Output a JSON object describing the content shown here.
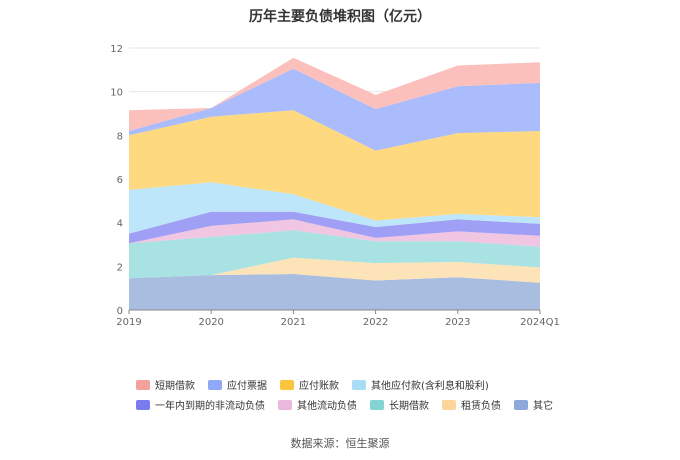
{
  "chart_data": {
    "type": "area",
    "stacked": true,
    "title": "历年主要负债堆积图（亿元）",
    "source": "数据来源：恒生聚源",
    "xlabel": "",
    "ylabel": "",
    "categories": [
      "2019",
      "2020",
      "2021",
      "2022",
      "2023",
      "2024Q1"
    ],
    "yticks": [
      0,
      2,
      4,
      6,
      8,
      10,
      12
    ],
    "ylim": [
      0,
      12
    ],
    "grid": true,
    "legend_position": "bottom",
    "series": [
      {
        "name": "其它",
        "color": "#a9bde0",
        "values": [
          1.45,
          1.6,
          1.65,
          1.35,
          1.5,
          1.25
        ]
      },
      {
        "name": "租赁负债",
        "color": "#fde3b8",
        "values": [
          0.0,
          0.0,
          0.75,
          0.8,
          0.7,
          0.7
        ]
      },
      {
        "name": "长期借款",
        "color": "#a8e2e3",
        "values": [
          1.6,
          1.75,
          1.25,
          1.0,
          0.95,
          0.95
        ]
      },
      {
        "name": "其他流动负债",
        "color": "#f0c6e2",
        "values": [
          0.0,
          0.5,
          0.5,
          0.15,
          0.45,
          0.5
        ]
      },
      {
        "name": "一年内到期的非流动负债",
        "color": "#9f9ff5",
        "values": [
          0.45,
          0.65,
          0.35,
          0.5,
          0.55,
          0.55
        ]
      },
      {
        "name": "其他应付款(含利息和股利)",
        "color": "#bde6fa",
        "values": [
          2.0,
          1.35,
          0.8,
          0.3,
          0.25,
          0.3
        ]
      },
      {
        "name": "应付账款",
        "color": "#ffd980",
        "values": [
          2.5,
          3.0,
          3.85,
          3.2,
          3.7,
          3.95
        ]
      },
      {
        "name": "应付票据",
        "color": "#aabcfb",
        "values": [
          0.2,
          0.4,
          1.9,
          1.9,
          2.15,
          2.2
        ]
      },
      {
        "name": "短期借款",
        "color": "#fcc0bc",
        "values": [
          0.95,
          0.0,
          0.5,
          0.65,
          0.95,
          0.95
        ]
      }
    ],
    "legend_order": [
      "短期借款",
      "应付票据",
      "应付账款",
      "其他应付款(含利息和股利)",
      "一年内到期的非流动负债",
      "其他流动负债",
      "长期借款",
      "租赁负债",
      "其它"
    ],
    "legend_swatch_colors": {
      "短期借款": "#f4a19b",
      "应付票据": "#8fa8f7",
      "应付账款": "#fdc440",
      "其他应付款(含利息和股利)": "#a9dcf7",
      "一年内到期的非流动负债": "#7b7bf0",
      "其他流动负债": "#eab8dc",
      "长期借款": "#84d4d6",
      "租赁负债": "#fcd59a",
      "其它": "#8ea9d9"
    }
  }
}
